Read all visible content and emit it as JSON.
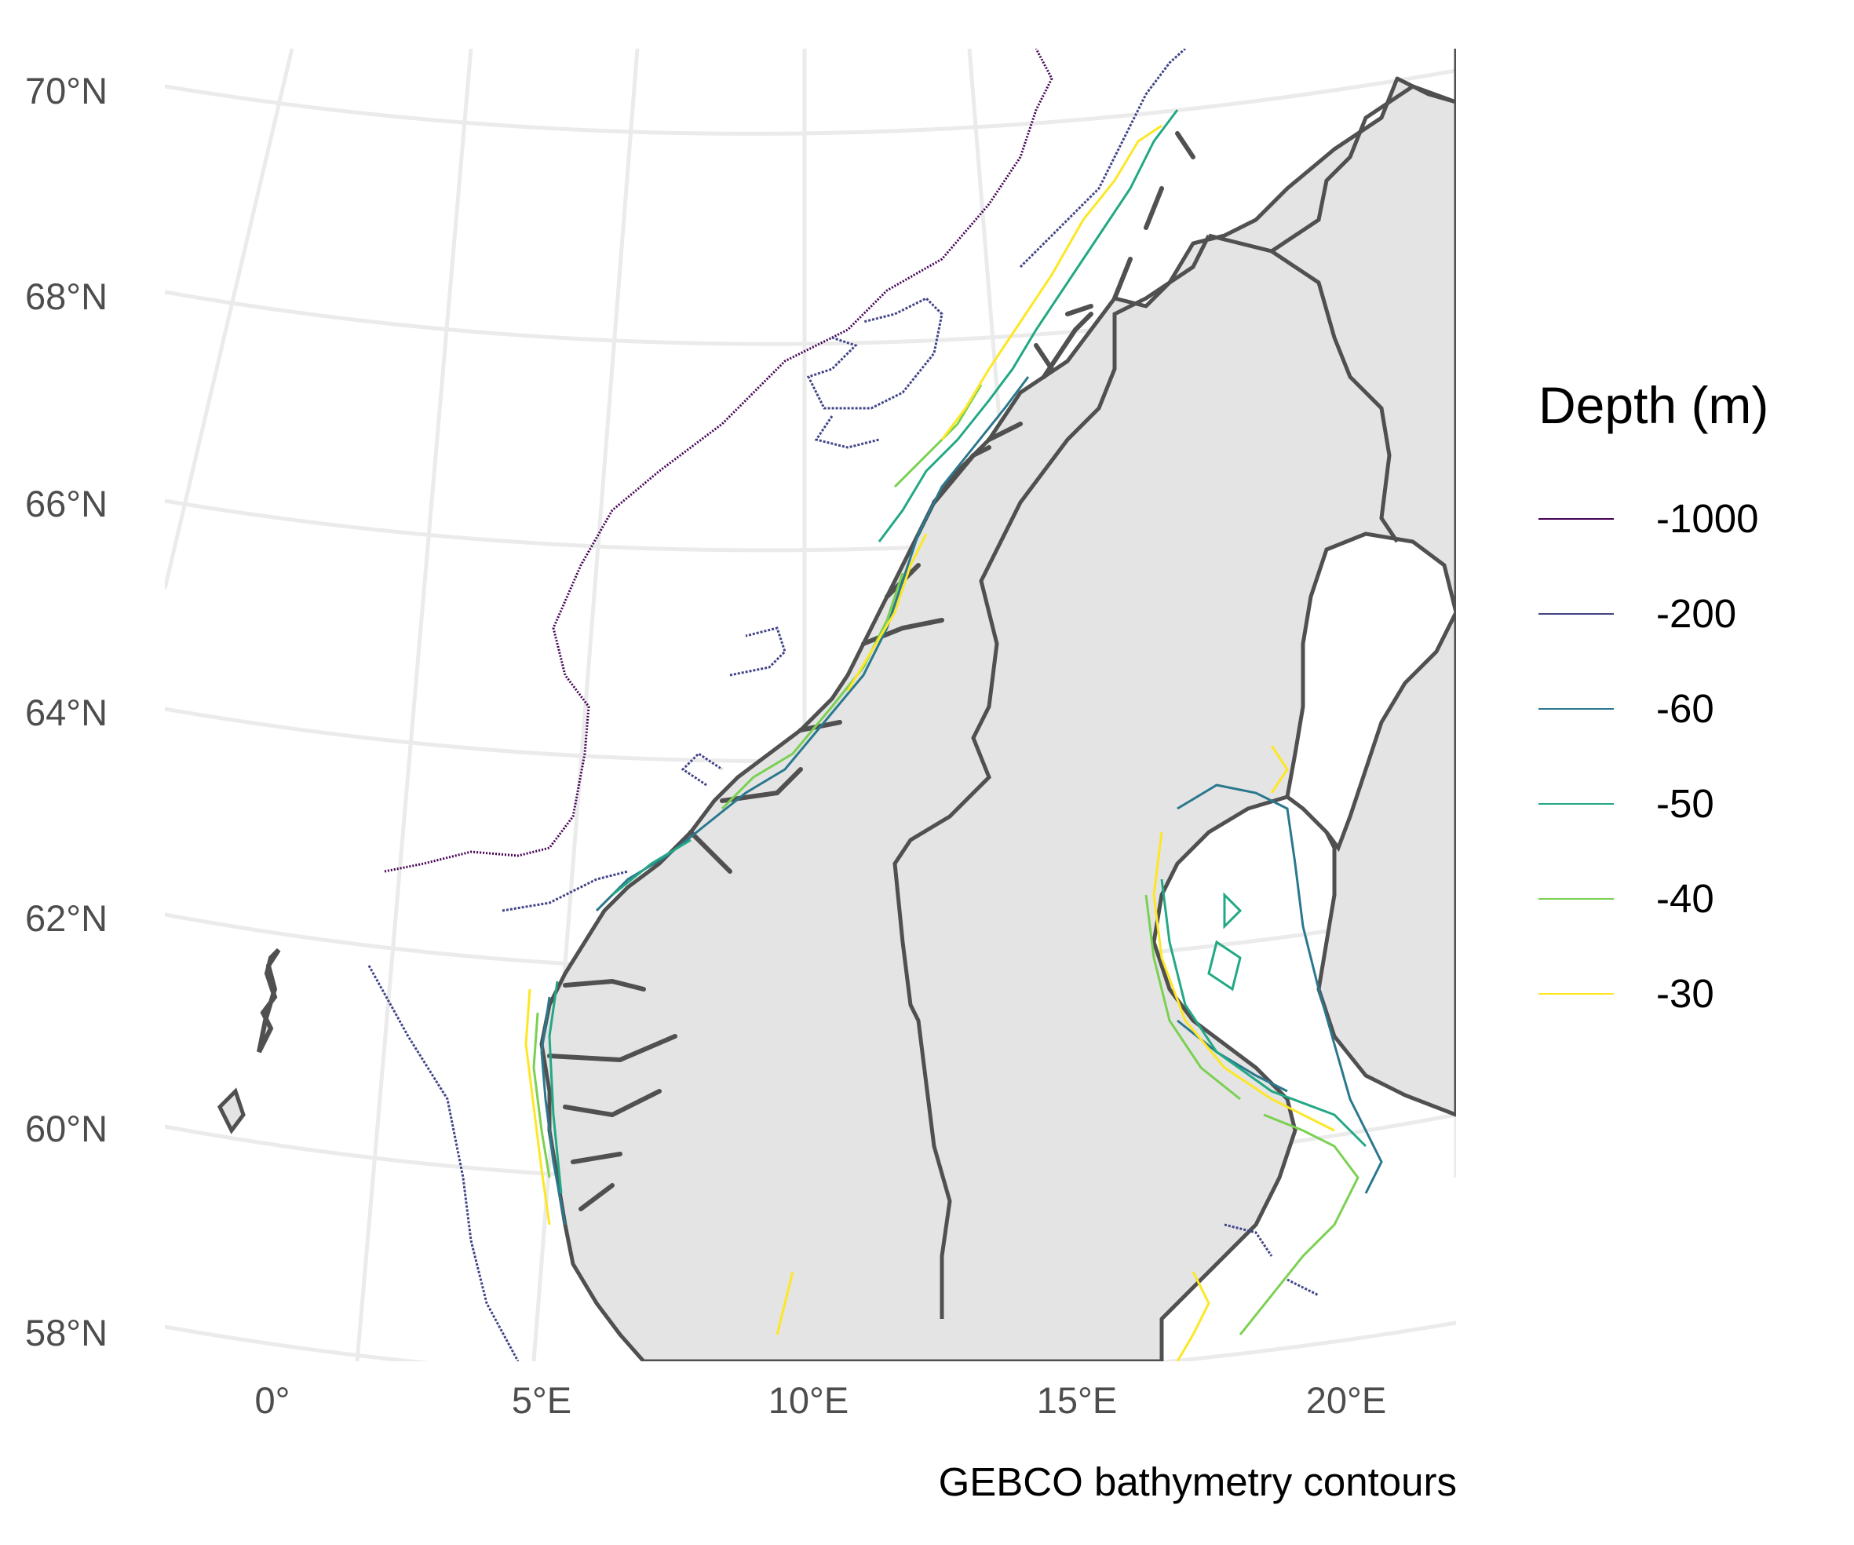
{
  "map": {
    "projection": "Lambert azimuthal (Scandinavia)",
    "lat_labels": [
      "70°N",
      "68°N",
      "66°N",
      "64°N",
      "62°N",
      "60°N",
      "58°N"
    ],
    "lon_labels": [
      "0°",
      "5°E",
      "10°E",
      "15°E",
      "20°E"
    ],
    "caption": "GEBCO bathymetry contours",
    "colors": {
      "land": "#e4e4e4",
      "coastline": "#505050",
      "graticule": "#ebebeb",
      "background": "#ffffff"
    }
  },
  "legend": {
    "title": "Depth (m)",
    "items": [
      {
        "label": "-1000",
        "color": "#440154"
      },
      {
        "label": "-200",
        "color": "#414487"
      },
      {
        "label": "-60",
        "color": "#2a788e"
      },
      {
        "label": "-50",
        "color": "#22a884"
      },
      {
        "label": "-40",
        "color": "#7ad151"
      },
      {
        "label": "-30",
        "color": "#fde725"
      }
    ]
  }
}
